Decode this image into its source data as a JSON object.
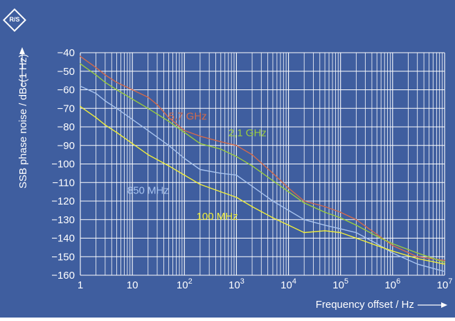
{
  "chart_data": {
    "type": "line",
    "title": "",
    "xlabel": "Frequency offset / Hz",
    "ylabel": "SSB phase noise / dBc(1 Hz)",
    "xscale": "log",
    "xlim": [
      1,
      10000000
    ],
    "ylim": [
      -160,
      -40
    ],
    "grid": true,
    "legend": "inline labels on plot",
    "x_ticks": [
      {
        "value": 1,
        "base": "1",
        "exp": ""
      },
      {
        "value": 10,
        "base": "10",
        "exp": ""
      },
      {
        "value": 100,
        "base": "10",
        "exp": "2"
      },
      {
        "value": 1000,
        "base": "10",
        "exp": "3"
      },
      {
        "value": 10000,
        "base": "10",
        "exp": "4"
      },
      {
        "value": 100000,
        "base": "10",
        "exp": "5"
      },
      {
        "value": 1000000,
        "base": "10",
        "exp": "6"
      },
      {
        "value": 10000000,
        "base": "10",
        "exp": "7"
      }
    ],
    "y_ticks": [
      -40,
      -50,
      -60,
      -70,
      -80,
      -90,
      -100,
      -110,
      -120,
      -130,
      -140,
      -150,
      -160
    ],
    "y_tick_labels": [
      "−40",
      "−50",
      "−60",
      "−70",
      "−80",
      "−90",
      "−100",
      "−110",
      "−120",
      "−130",
      "−140",
      "−150",
      "−160"
    ],
    "series": [
      {
        "name": "5,7 GHz",
        "color": "#d46a4a",
        "label_at": [
          50,
          -76
        ],
        "points": [
          [
            1,
            -42
          ],
          [
            2,
            -48
          ],
          [
            3,
            -52
          ],
          [
            5,
            -56
          ],
          [
            10,
            -60
          ],
          [
            20,
            -64
          ],
          [
            30,
            -68
          ],
          [
            50,
            -75
          ],
          [
            100,
            -82
          ],
          [
            200,
            -85
          ],
          [
            500,
            -88
          ],
          [
            1000,
            -90
          ],
          [
            2000,
            -95
          ],
          [
            5000,
            -105
          ],
          [
            10000,
            -113
          ],
          [
            20000,
            -120
          ],
          [
            50000,
            -123
          ],
          [
            100000,
            -126
          ],
          [
            200000,
            -130
          ],
          [
            500000,
            -138
          ],
          [
            1000000,
            -144
          ],
          [
            3000000,
            -150
          ],
          [
            10000000,
            -152
          ]
        ]
      },
      {
        "name": "2,1 GHz",
        "color": "#9ccc3c",
        "label_at": [
          700,
          -85
        ],
        "points": [
          [
            1,
            -46
          ],
          [
            2,
            -52
          ],
          [
            3,
            -56
          ],
          [
            5,
            -60
          ],
          [
            10,
            -65
          ],
          [
            20,
            -70
          ],
          [
            50,
            -77
          ],
          [
            100,
            -83
          ],
          [
            200,
            -89
          ],
          [
            500,
            -92
          ],
          [
            1000,
            -96
          ],
          [
            2000,
            -101
          ],
          [
            5000,
            -109
          ],
          [
            10000,
            -115
          ],
          [
            20000,
            -121
          ],
          [
            50000,
            -126
          ],
          [
            100000,
            -129
          ],
          [
            200000,
            -133
          ],
          [
            500000,
            -139
          ],
          [
            1000000,
            -143
          ],
          [
            3000000,
            -148
          ],
          [
            10000000,
            -153
          ]
        ]
      },
      {
        "name": "850 MHz",
        "color": "#a8c4f0",
        "label_at": [
          8,
          -116
        ],
        "points": [
          [
            1,
            -58
          ],
          [
            2,
            -62
          ],
          [
            3,
            -66
          ],
          [
            5,
            -70
          ],
          [
            10,
            -76
          ],
          [
            20,
            -82
          ],
          [
            50,
            -90
          ],
          [
            100,
            -97
          ],
          [
            200,
            -103
          ],
          [
            500,
            -105
          ],
          [
            1000,
            -106
          ],
          [
            2000,
            -112
          ],
          [
            5000,
            -120
          ],
          [
            10000,
            -125
          ],
          [
            20000,
            -130
          ],
          [
            50000,
            -133
          ],
          [
            100000,
            -135
          ],
          [
            200000,
            -137
          ],
          [
            500000,
            -143
          ],
          [
            1000000,
            -148
          ],
          [
            3000000,
            -154
          ],
          [
            10000000,
            -158
          ]
        ]
      },
      {
        "name": "100 MHz",
        "color": "#f2ef3a",
        "label_at": [
          170,
          -130
        ],
        "points": [
          [
            1,
            -69
          ],
          [
            2,
            -75
          ],
          [
            3,
            -79
          ],
          [
            5,
            -83
          ],
          [
            10,
            -89
          ],
          [
            20,
            -95
          ],
          [
            50,
            -101
          ],
          [
            100,
            -106
          ],
          [
            200,
            -111
          ],
          [
            500,
            -115
          ],
          [
            1000,
            -118
          ],
          [
            2000,
            -123
          ],
          [
            5000,
            -129
          ],
          [
            10000,
            -133
          ],
          [
            20000,
            -137
          ],
          [
            50000,
            -136
          ],
          [
            100000,
            -137
          ],
          [
            200000,
            -140
          ],
          [
            500000,
            -144
          ],
          [
            1000000,
            -147
          ],
          [
            3000000,
            -151
          ],
          [
            10000000,
            -154
          ]
        ]
      }
    ]
  }
}
